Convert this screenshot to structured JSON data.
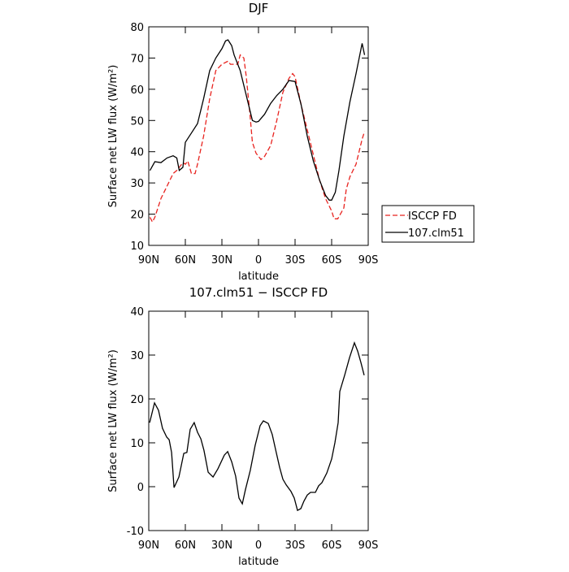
{
  "chart_data": [
    {
      "type": "line",
      "title": "DJF",
      "xlabel": "latitude",
      "ylabel": "Surface net LW flux (W/m²)",
      "xlim": [
        90,
        -90
      ],
      "xticks": [
        {
          "value": 90,
          "label": "90N"
        },
        {
          "value": 60,
          "label": "60N"
        },
        {
          "value": 30,
          "label": "30N"
        },
        0,
        {
          "value": -30,
          "label": "30S"
        },
        {
          "value": -60,
          "label": "60S"
        },
        {
          "value": -90,
          "label": "90S"
        }
      ],
      "ylim": [
        10,
        80
      ],
      "yticks": [
        10,
        20,
        30,
        40,
        50,
        60,
        70,
        80
      ],
      "legend": "right",
      "series": [
        {
          "name": "ISCCP FD",
          "color": "#e8231f",
          "dash": true,
          "x": [
            89,
            87,
            85,
            80,
            75,
            70,
            67,
            62,
            60,
            58,
            55,
            52,
            50,
            45,
            40,
            35,
            30,
            25,
            23,
            20,
            17,
            15,
            12,
            10,
            7,
            5,
            2,
            0,
            -2,
            -5,
            -10,
            -15,
            -20,
            -25,
            -28,
            -30,
            -35,
            -40,
            -45,
            -50,
            -55,
            -60,
            -62,
            -65,
            -70,
            -72,
            -75,
            -80,
            -85,
            -87
          ],
          "values": [
            19,
            17.5,
            19,
            25,
            29,
            33,
            34,
            36.5,
            36,
            37,
            33,
            33,
            36,
            45,
            57,
            66,
            68,
            69,
            68,
            68,
            68,
            71,
            70,
            64,
            52,
            43,
            39.5,
            38.5,
            37.5,
            38.5,
            42,
            50,
            59,
            63.5,
            65,
            64,
            55,
            47,
            39,
            31,
            25,
            21,
            18.5,
            18.5,
            22,
            28,
            32,
            36,
            44,
            46.5
          ]
        },
        {
          "name": "107.clm51",
          "color": "#000000",
          "dash": false,
          "x": [
            89,
            85,
            80,
            75,
            70,
            67,
            65,
            62,
            60,
            55,
            50,
            45,
            40,
            35,
            30,
            27,
            25,
            22,
            20,
            15,
            10,
            5,
            2,
            0,
            -5,
            -10,
            -15,
            -20,
            -25,
            -30,
            -35,
            -40,
            -45,
            -50,
            -55,
            -58,
            -60,
            -63,
            -66,
            -70,
            -75,
            -80,
            -85,
            -87
          ],
          "values": [
            34,
            36.8,
            36.5,
            38,
            38.7,
            38,
            34,
            35,
            43,
            46,
            49,
            57,
            66,
            70,
            73,
            75.5,
            75.8,
            74,
            71,
            66,
            58,
            50,
            49.5,
            49.7,
            52,
            55.5,
            58,
            60,
            62.8,
            62.5,
            55,
            45,
            37,
            31,
            26,
            24.5,
            24.5,
            27,
            34,
            45,
            56,
            65,
            74.7,
            71
          ]
        }
      ]
    },
    {
      "type": "line",
      "title": "107.clm51 − ISCCP FD",
      "xlabel": "latitude",
      "ylabel": "Surface net LW flux (W/m²)",
      "xlim": [
        90,
        -90
      ],
      "xticks": [
        {
          "value": 90,
          "label": "90N"
        },
        {
          "value": 60,
          "label": "60N"
        },
        {
          "value": 30,
          "label": "30N"
        },
        0,
        {
          "value": -30,
          "label": "30S"
        },
        {
          "value": -60,
          "label": "60S"
        },
        {
          "value": -90,
          "label": "90S"
        }
      ],
      "ylim": [
        -10,
        40
      ],
      "yticks": [
        -10,
        0,
        10,
        20,
        30,
        40
      ],
      "series": [
        {
          "color": "#000000",
          "dash": false,
          "x": [
            89.3,
            85.3,
            82,
            78.7,
            75.3,
            73.3,
            71.3,
            69.3,
            65.3,
            61.3,
            58.7,
            56,
            52.7,
            50,
            47.3,
            44.7,
            41.3,
            37.3,
            33.3,
            28,
            25.3,
            22,
            18.7,
            16,
            13.3,
            10.7,
            6.7,
            2.7,
            -1.3,
            -4,
            -8,
            -11.3,
            -14,
            -17.3,
            -20,
            -22.7,
            -26.7,
            -29.3,
            -32,
            -34.7,
            -37.3,
            -40,
            -42.7,
            -46.7,
            -49.3,
            -52,
            -56,
            -60,
            -62.7,
            -65.3,
            -66.7,
            -70.7,
            -74.7,
            -78.7,
            -81.3,
            -84,
            -86.7
          ],
          "values": [
            14.6,
            19.1,
            17.4,
            13.3,
            11.3,
            10.7,
            7.8,
            -0.2,
            2.2,
            7.6,
            7.8,
            13.1,
            14.6,
            12.4,
            10.9,
            8.3,
            3.3,
            2.2,
            4.1,
            7.2,
            8,
            5.7,
            2.4,
            -2.6,
            -3.9,
            -0.7,
            3.7,
            9.4,
            13.9,
            15,
            14.4,
            11.9,
            8.5,
            4.4,
            1.7,
            0.4,
            -1.1,
            -2.6,
            -5.4,
            -5,
            -3.3,
            -1.9,
            -1.3,
            -1.3,
            0.2,
            0.9,
            3.1,
            6.3,
            10,
            14.6,
            21.7,
            25.4,
            29.4,
            32.8,
            30.9,
            28.3,
            25.4
          ]
        }
      ]
    }
  ]
}
